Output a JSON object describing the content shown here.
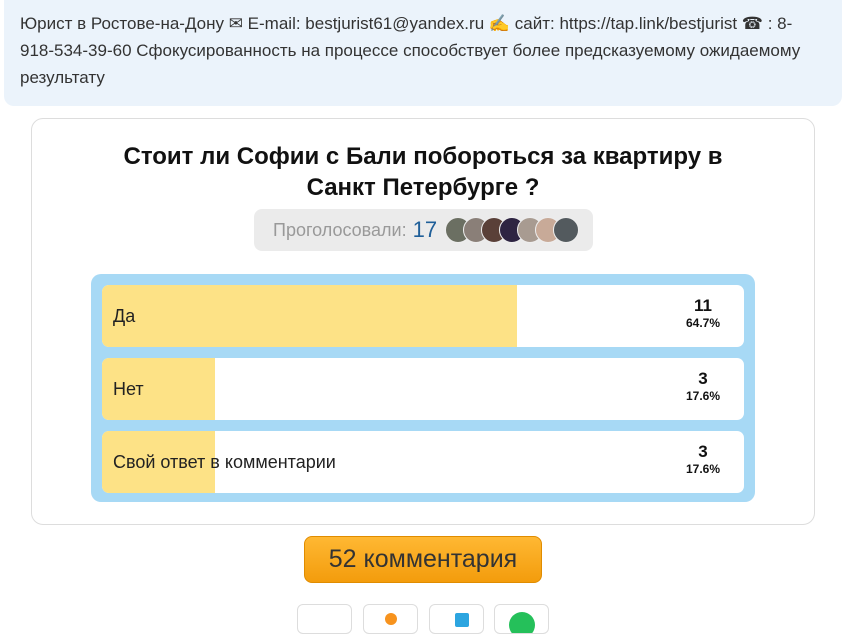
{
  "info_banner": {
    "text": "Юрист в Ростове-на-Дону ✉ E-mail: bestjurist61@yandex.ru ✍ сайт: https://tap.link/bestjurist ☎ : 8-918-534-39-60 Сфокусированность на процессе способствует более предсказуемому ожидаемому результату"
  },
  "poll": {
    "title": "Стоит ли Софии с Бали побороться за квартиру в Санкт Петербурге ?",
    "voted_label": "Проголосовали:",
    "voted_count": "17",
    "options": [
      {
        "label": "Да",
        "count": "11",
        "percent": "64.7%",
        "fraction": 0.647
      },
      {
        "label": "Нет",
        "count": "3",
        "percent": "17.6%",
        "fraction": 0.176
      },
      {
        "label": "Свой ответ в комментарии",
        "count": "3",
        "percent": "17.6%",
        "fraction": 0.176
      }
    ]
  },
  "comments_button": "52 комментария",
  "share": [
    "vk-icon",
    "odnoklassniki-icon",
    "telegram-icon",
    "whatsapp-icon"
  ],
  "colors": {
    "bar_fill": "#fde286",
    "poll_frame": "#a7d9f5",
    "button": "#f7a71e"
  }
}
